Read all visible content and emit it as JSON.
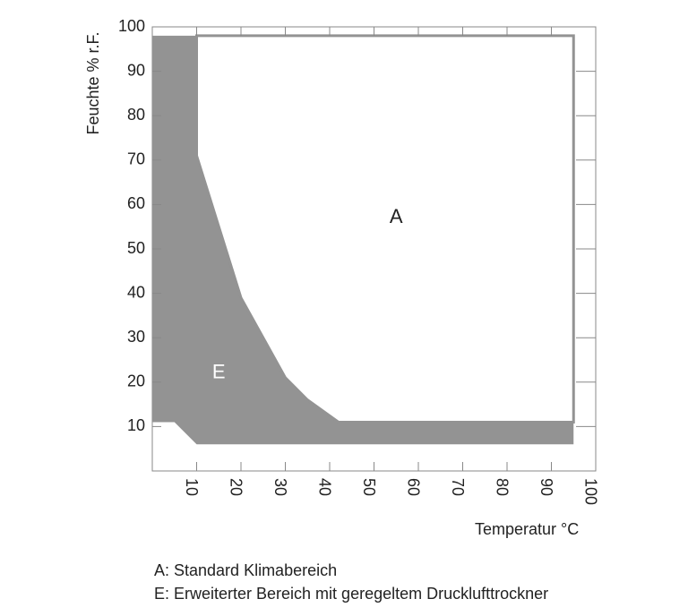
{
  "chart_data": {
    "type": "region",
    "x_label": "Temperatur °C",
    "y_label": "Feuchte % r.F.",
    "xlim": [
      0,
      100
    ],
    "ylim": [
      0,
      100
    ],
    "xticks": [
      10,
      20,
      30,
      40,
      50,
      60,
      70,
      80,
      90,
      100
    ],
    "yticks": [
      10,
      20,
      30,
      40,
      50,
      60,
      70,
      80,
      90,
      100
    ],
    "series": [
      {
        "name": "E",
        "color": "#939393",
        "x": [
          0,
          10,
          10,
          20,
          30,
          35,
          42,
          95,
          95,
          10,
          5,
          0
        ],
        "values": [
          98,
          98,
          71,
          39,
          21,
          16,
          11,
          11,
          6,
          6,
          11,
          11
        ]
      },
      {
        "name": "A",
        "color": "#ffffff",
        "x": [
          10,
          95,
          95,
          42,
          35,
          30,
          20,
          10
        ],
        "values": [
          98,
          98,
          11,
          11,
          16,
          21,
          39,
          71
        ]
      }
    ],
    "notes": [
      "A: Standard Klimabereich",
      "E: Erweiterter Bereich mit geregeltem Drucklufttrockner"
    ]
  }
}
